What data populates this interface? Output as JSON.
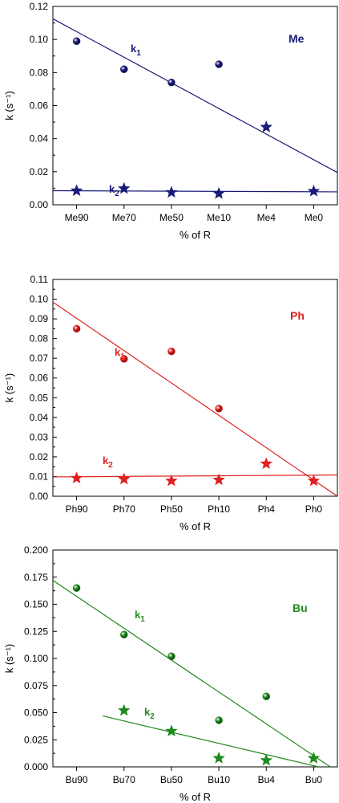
{
  "chart_data": [
    {
      "type": "scatter",
      "panel_label": "Me",
      "color": "#1a1a7a",
      "categories": [
        "Me90",
        "Me70",
        "Me50",
        "Me10",
        "Me4",
        "Me0"
      ],
      "xlabel": "% of R",
      "ylabel": "k (s⁻¹)",
      "ylim": [
        0,
        0.12
      ],
      "yticks": [
        "0.00",
        "0.02",
        "0.04",
        "0.06",
        "0.08",
        "0.10",
        "0.12"
      ],
      "series": [
        {
          "name": "k1",
          "values": [
            0.099,
            0.082,
            0.074,
            0.085,
            0.047,
            null
          ],
          "markers": [
            "sphere",
            "sphere",
            "sphere",
            "sphere",
            "star",
            null
          ],
          "fit": {
            "from": [
              -0.5,
              0.1125
            ],
            "to": [
              5.5,
              0.0195
            ]
          }
        },
        {
          "name": "k2",
          "values": [
            0.0085,
            0.0098,
            0.0075,
            0.0068,
            null,
            0.0082
          ],
          "markers": [
            "star",
            "star",
            "star",
            "star",
            null,
            "star"
          ],
          "fit": {
            "from": [
              -0.5,
              0.0085
            ],
            "to": [
              5.5,
              0.0078
            ]
          }
        }
      ]
    },
    {
      "type": "scatter",
      "panel_label": "Ph",
      "color": "#e02020",
      "categories": [
        "Ph90",
        "Ph70",
        "Ph50",
        "Ph10",
        "Ph4",
        "Ph0"
      ],
      "xlabel": "% of R",
      "ylabel": "k (s⁻¹)",
      "ylim": [
        0,
        0.11
      ],
      "yticks": [
        "0.00",
        "0.01",
        "0.02",
        "0.03",
        "0.04",
        "0.05",
        "0.06",
        "0.07",
        "0.08",
        "0.09",
        "0.10",
        "0.11"
      ],
      "series": [
        {
          "name": "k1",
          "values": [
            0.085,
            0.0697,
            0.0735,
            0.0445,
            null,
            null
          ],
          "markers": [
            "sphere",
            "sphere",
            "sphere",
            "sphere",
            null,
            null
          ],
          "fit": {
            "from": [
              -0.5,
              0.0985
            ],
            "to": [
              5.5,
              0.0
            ]
          }
        },
        {
          "name": "k2",
          "values": [
            0.0092,
            0.0087,
            0.0078,
            0.0083,
            0.0165,
            0.0078
          ],
          "markers": [
            "star",
            "star",
            "star",
            "star",
            "star",
            "star"
          ],
          "fit": {
            "from": [
              -0.5,
              0.0098
            ],
            "to": [
              5.5,
              0.0108
            ]
          }
        }
      ]
    },
    {
      "type": "scatter",
      "panel_label": "Bu",
      "color": "#1e8a1e",
      "categories": [
        "Bu90",
        "Bu70",
        "Bu50",
        "Bu10",
        "Bu4",
        "Bu0"
      ],
      "xlabel": "% of R",
      "ylabel": "k (s⁻¹)",
      "ylim": [
        0,
        0.2
      ],
      "yticks": [
        "0.000",
        "0.025",
        "0.050",
        "0.075",
        "0.100",
        "0.125",
        "0.150",
        "0.175",
        "0.200"
      ],
      "series": [
        {
          "name": "k1",
          "values": [
            0.165,
            0.122,
            0.102,
            0.043,
            0.065,
            null
          ],
          "markers": [
            "sphere",
            "sphere",
            "sphere",
            "sphere",
            "sphere",
            null
          ],
          "fit": {
            "from": [
              -0.5,
              0.172
            ],
            "to": [
              5.35,
              0.0
            ]
          }
        },
        {
          "name": "k2",
          "values": [
            null,
            0.052,
            0.033,
            0.008,
            0.006,
            0.008
          ],
          "markers": [
            null,
            "star",
            "star",
            "star",
            "star",
            "star"
          ],
          "fit": {
            "from": [
              0.55,
              0.047
            ],
            "to": [
              5.1,
              0.0
            ]
          }
        }
      ]
    }
  ]
}
